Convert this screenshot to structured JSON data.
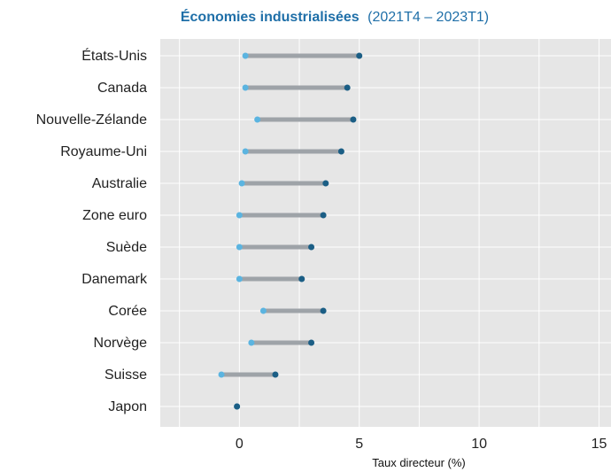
{
  "chart_data": {
    "type": "dumbbell",
    "title": "Économies industrialisées",
    "subtitle": "(2021T4 – 2023T1)",
    "xlabel": "Taux directeur (%)",
    "ylabel": "",
    "xlim": [
      -3.3,
      15.5
    ],
    "xticks": [
      0,
      5,
      10,
      15
    ],
    "grid": true,
    "colors": {
      "background": "#e6e6e6",
      "grid": "#ffffff",
      "segment": "#9ea3a8",
      "start_point": "#5bb4e0",
      "end_point": "#1b5e85",
      "title": "#1f6fa8"
    },
    "categories": [
      "États-Unis",
      "Canada",
      "Nouvelle-Zélande",
      "Royaume-Uni",
      "Australie",
      "Zone euro",
      "Suède",
      "Danemark",
      "Corée",
      "Norvège",
      "Suisse",
      "Japon"
    ],
    "series": [
      {
        "values": [
          0.25,
          0.25,
          0.75,
          0.25,
          0.1,
          0.0,
          0.0,
          0.0,
          1.0,
          0.5,
          -0.75,
          -0.1
        ]
      },
      {
        "values": [
          5.0,
          4.5,
          4.75,
          4.25,
          3.6,
          3.5,
          3.0,
          2.6,
          3.5,
          3.0,
          1.5,
          -0.1
        ]
      }
    ]
  }
}
